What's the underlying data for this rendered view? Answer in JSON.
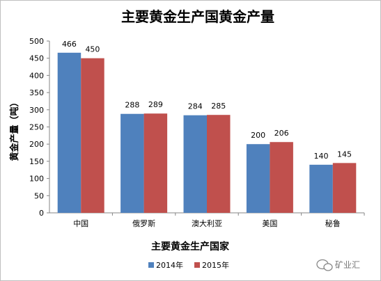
{
  "chart_data": {
    "type": "bar",
    "title": "主要黄金生产国黄金产量",
    "xlabel": "主要黄金生产国家",
    "ylabel": "黄金产量（吨）",
    "categories": [
      "中国",
      "俄罗斯",
      "澳大利亚",
      "美国",
      "秘鲁"
    ],
    "series": [
      {
        "name": "2014年",
        "color": "#4f81bd",
        "values": [
          466,
          288,
          284,
          200,
          140
        ]
      },
      {
        "name": "2015年",
        "color": "#c0504d",
        "values": [
          450,
          289,
          285,
          206,
          145
        ]
      }
    ],
    "ylim": [
      0,
      500
    ],
    "yticks": [
      0,
      50,
      100,
      150,
      200,
      250,
      300,
      350,
      400,
      450,
      500
    ],
    "grid": false,
    "legend": "bottom-right",
    "data_labels": true
  },
  "watermark": {
    "text": "矿业汇",
    "icon": "wechat-icon"
  }
}
